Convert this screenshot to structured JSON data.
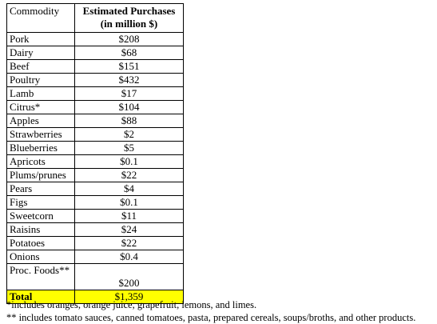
{
  "table": {
    "header": {
      "commodity": "Commodity",
      "value_line1": "Estimated Purchases",
      "value_line2": "(in million $)"
    },
    "rows": [
      {
        "commodity": "Pork",
        "value": "$208"
      },
      {
        "commodity": "Dairy",
        "value": "$68"
      },
      {
        "commodity": "Beef",
        "value": "$151"
      },
      {
        "commodity": "Poultry",
        "value": "$432"
      },
      {
        "commodity": "Lamb",
        "value": "$17"
      },
      {
        "commodity": "Citrus*",
        "value": "$104"
      },
      {
        "commodity": "Apples",
        "value": "$88"
      },
      {
        "commodity": "Strawberries",
        "value": "$2"
      },
      {
        "commodity": "Blueberries",
        "value": "$5"
      },
      {
        "commodity": "Apricots",
        "value": "$0.1"
      },
      {
        "commodity": "Plums/prunes",
        "value": "$22"
      },
      {
        "commodity": "Pears",
        "value": "$4"
      },
      {
        "commodity": "Figs",
        "value": "$0.1"
      },
      {
        "commodity": "Sweetcorn",
        "value": "$11"
      },
      {
        "commodity": "Raisins",
        "value": "$24"
      },
      {
        "commodity": "Potatoes",
        "value": "$22"
      },
      {
        "commodity": "Onions",
        "value": "$0.4"
      },
      {
        "commodity": "Proc. Foods**",
        "value": "$200"
      }
    ],
    "total": {
      "commodity": "Total",
      "value": "$1,359"
    },
    "highlight_color": "#ffff00"
  },
  "footnotes": [
    "*includes oranges, orange juice, grapefruit, lemons, and limes.",
    "** includes tomato sauces, canned tomatoes, pasta, prepared cereals, soups/broths, and other products."
  ]
}
